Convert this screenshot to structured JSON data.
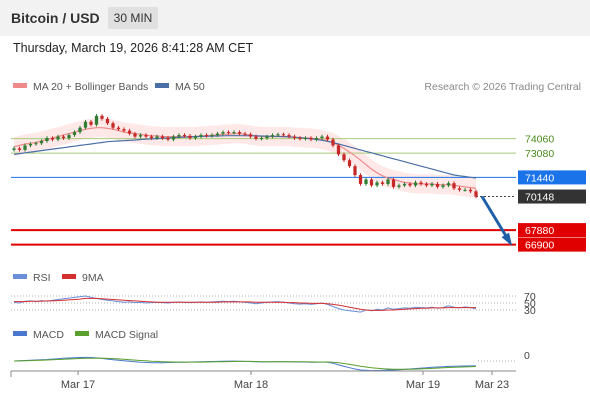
{
  "header": {
    "title": "Bitcoin / USD",
    "timeframe": "30 MIN"
  },
  "timestamp": "Thursday, March 19, 2026 8:41:28 AM CET",
  "legend": {
    "ma20": "MA 20 + Bollinger Bands",
    "ma50": "MA 50",
    "credit": "Research © 2026 Trading Central",
    "rsi": "RSI",
    "rsi_signal": "9MA",
    "macd": "MACD",
    "macd_signal": "MACD Signal"
  },
  "colors": {
    "up": "#2e7d32",
    "down": "#c62828",
    "ma20": "#ef8a8a",
    "band": "#fde0e0",
    "ma50": "#4a6fa5",
    "resistance": "#a8cc7a",
    "pivot": "#1a73e8",
    "support": "#e00000",
    "current": "#333333",
    "arrow": "#1f5fa8",
    "rsi": "#6a8fd8",
    "rsi_signal": "#d32f2f",
    "macd": "#4a78d0",
    "macd_signal": "#5aa02c"
  },
  "chart_data": [
    {
      "type": "candlestick",
      "name": "price",
      "x_ticks": [
        "Mar 17",
        "Mar 18",
        "Mar 19",
        "Mar 23"
      ],
      "ylim": [
        66400,
        76400
      ],
      "levels": [
        {
          "value": 74060,
          "label": "74060",
          "kind": "resistance"
        },
        {
          "value": 73080,
          "label": "73080",
          "kind": "resistance"
        },
        {
          "value": 71440,
          "label": "71440",
          "kind": "pivot"
        },
        {
          "value": 70148,
          "label": "70148",
          "kind": "current"
        },
        {
          "value": 67880,
          "label": "67880",
          "kind": "support"
        },
        {
          "value": 66900,
          "label": "66900",
          "kind": "support"
        }
      ],
      "close": [
        73400,
        73300,
        73600,
        73700,
        73750,
        73900,
        74100,
        74000,
        74200,
        74100,
        74300,
        74500,
        74800,
        75200,
        75000,
        75600,
        75400,
        75100,
        74800,
        74700,
        74600,
        74400,
        74200,
        74300,
        74200,
        74100,
        74200,
        74100,
        74000,
        74200,
        74300,
        74250,
        74100,
        74200,
        74300,
        74250,
        74300,
        74400,
        74500,
        74450,
        74500,
        74400,
        74350,
        74200,
        74050,
        74100,
        74200,
        74300,
        74350,
        74300,
        74200,
        74100,
        74050,
        74100,
        74000,
        74100,
        74200,
        74000,
        73600,
        73000,
        72600,
        72200,
        71600,
        71000,
        71300,
        70900,
        71100,
        71000,
        71300,
        70800,
        70900,
        71000,
        70900,
        71100,
        71000,
        70900,
        71000,
        70800,
        70900,
        71050,
        70700,
        70600,
        70600,
        70500,
        70148
      ],
      "ma20": [
        73500,
        73600,
        73700,
        73750,
        73800,
        73900,
        74000,
        74100,
        74200,
        74300,
        74400,
        74500,
        74600,
        74700,
        74750,
        74800,
        74800,
        74750,
        74700,
        74600,
        74500,
        74450,
        74400,
        74350,
        74300,
        74250,
        74250,
        74200,
        74200,
        74200,
        74200,
        74200,
        74200,
        74200,
        74250,
        74250,
        74300,
        74300,
        74350,
        74350,
        74400,
        74400,
        74350,
        74300,
        74250,
        74200,
        74200,
        74200,
        74200,
        74200,
        74200,
        74150,
        74150,
        74100,
        74100,
        74050,
        74000,
        73900,
        73800,
        73600,
        73400,
        73150,
        72900,
        72600,
        72300,
        72000,
        71750,
        71550,
        71400,
        71300,
        71200,
        71100,
        71050,
        71000,
        71000,
        71000,
        71000,
        70950,
        70950,
        70950,
        70900,
        70850,
        70800,
        70750,
        70700
      ],
      "ma50": [
        73000,
        73050,
        73100,
        73150,
        73200,
        73250,
        73300,
        73350,
        73400,
        73450,
        73500,
        73550,
        73600,
        73650,
        73700,
        73750,
        73800,
        73850,
        73880,
        73900,
        73920,
        73950,
        73970,
        74000,
        74020,
        74040,
        74060,
        74080,
        74100,
        74120,
        74140,
        74160,
        74180,
        74200,
        74210,
        74220,
        74230,
        74240,
        74250,
        74260,
        74260,
        74260,
        74260,
        74250,
        74250,
        74240,
        74230,
        74220,
        74210,
        74200,
        74180,
        74150,
        74120,
        74080,
        74040,
        74000,
        73950,
        73880,
        73800,
        73700,
        73600,
        73500,
        73400,
        73300,
        73200,
        73100,
        73000,
        72900,
        72800,
        72700,
        72600,
        72500,
        72400,
        72300,
        72200,
        72100,
        72000,
        71900,
        71800,
        71700,
        71600,
        71550,
        71500,
        71450,
        71400
      ],
      "forecast": {
        "from": 70148,
        "to": 66900
      }
    },
    {
      "type": "line",
      "name": "rsi",
      "ylim": [
        0,
        100
      ],
      "levels": [
        {
          "value": 70,
          "label": "70"
        },
        {
          "value": 50,
          "label": "50"
        },
        {
          "value": 30,
          "label": "30"
        }
      ],
      "rsi": [
        52,
        50,
        55,
        56,
        54,
        57,
        55,
        58,
        60,
        62,
        64,
        66,
        68,
        70,
        66,
        63,
        60,
        58,
        56,
        54,
        52,
        53,
        51,
        52,
        50,
        51,
        52,
        51,
        50,
        52,
        53,
        52,
        51,
        52,
        53,
        52,
        53,
        54,
        55,
        54,
        55,
        53,
        52,
        50,
        48,
        50,
        52,
        53,
        54,
        52,
        50,
        48,
        47,
        48,
        46,
        48,
        50,
        46,
        40,
        34,
        30,
        28,
        26,
        24,
        30,
        28,
        32,
        30,
        36,
        32,
        34,
        36,
        35,
        38,
        37,
        36,
        38,
        35,
        37,
        42,
        38,
        36,
        39,
        37,
        33
      ],
      "signal": [
        54,
        54,
        54,
        55,
        55,
        55,
        56,
        56,
        57,
        58,
        59,
        60,
        61,
        63,
        63,
        63,
        62,
        61,
        60,
        59,
        58,
        57,
        56,
        55,
        54,
        53,
        52,
        52,
        52,
        52,
        52,
        52,
        52,
        52,
        52,
        52,
        52,
        52,
        53,
        53,
        53,
        53,
        53,
        53,
        52,
        52,
        52,
        52,
        52,
        52,
        51,
        51,
        50,
        50,
        49,
        49,
        49,
        48,
        46,
        44,
        41,
        38,
        35,
        32,
        30,
        29,
        29,
        29,
        30,
        30,
        31,
        32,
        33,
        34,
        35,
        35,
        36,
        36,
        36,
        37,
        37,
        37,
        37,
        37,
        37
      ]
    },
    {
      "type": "line",
      "name": "macd",
      "ylim": [
        -900,
        500
      ],
      "levels": [
        {
          "value": 0,
          "label": "0"
        }
      ],
      "macd": [
        0,
        20,
        40,
        60,
        80,
        100,
        120,
        150,
        180,
        210,
        230,
        250,
        270,
        280,
        270,
        240,
        200,
        150,
        100,
        60,
        20,
        -20,
        -60,
        -90,
        -110,
        -130,
        -140,
        -130,
        -120,
        -110,
        -100,
        -90,
        -80,
        -70,
        -60,
        -50,
        -40,
        -30,
        -20,
        -10,
        -10,
        -20,
        -30,
        -40,
        -60,
        -70,
        -70,
        -60,
        -50,
        -50,
        -60,
        -70,
        -80,
        -80,
        -90,
        -90,
        -80,
        -100,
        -180,
        -300,
        -420,
        -520,
        -620,
        -700,
        -720,
        -750,
        -740,
        -730,
        -700,
        -700,
        -680,
        -650,
        -620,
        -580,
        -550,
        -520,
        -490,
        -470,
        -450,
        -420,
        -410,
        -400,
        -390,
        -385,
        -380
      ],
      "signal": [
        0,
        10,
        20,
        30,
        45,
        60,
        75,
        95,
        115,
        135,
        155,
        175,
        195,
        210,
        220,
        222,
        218,
        205,
        185,
        160,
        132,
        102,
        70,
        40,
        12,
        -12,
        -35,
        -55,
        -70,
        -80,
        -85,
        -88,
        -88,
        -86,
        -82,
        -76,
        -70,
        -62,
        -54,
        -46,
        -39,
        -35,
        -34,
        -35,
        -40,
        -46,
        -51,
        -53,
        -53,
        -52,
        -54,
        -57,
        -62,
        -66,
        -71,
        -75,
        -76,
        -81,
        -100,
        -140,
        -196,
        -261,
        -333,
        -406,
        -469,
        -525,
        -568,
        -600,
        -620,
        -636,
        -645,
        -646,
        -641,
        -629,
        -613,
        -594,
        -573,
        -552,
        -531,
        -509,
        -489,
        -471,
        -455,
        -441,
        -429
      ]
    }
  ]
}
